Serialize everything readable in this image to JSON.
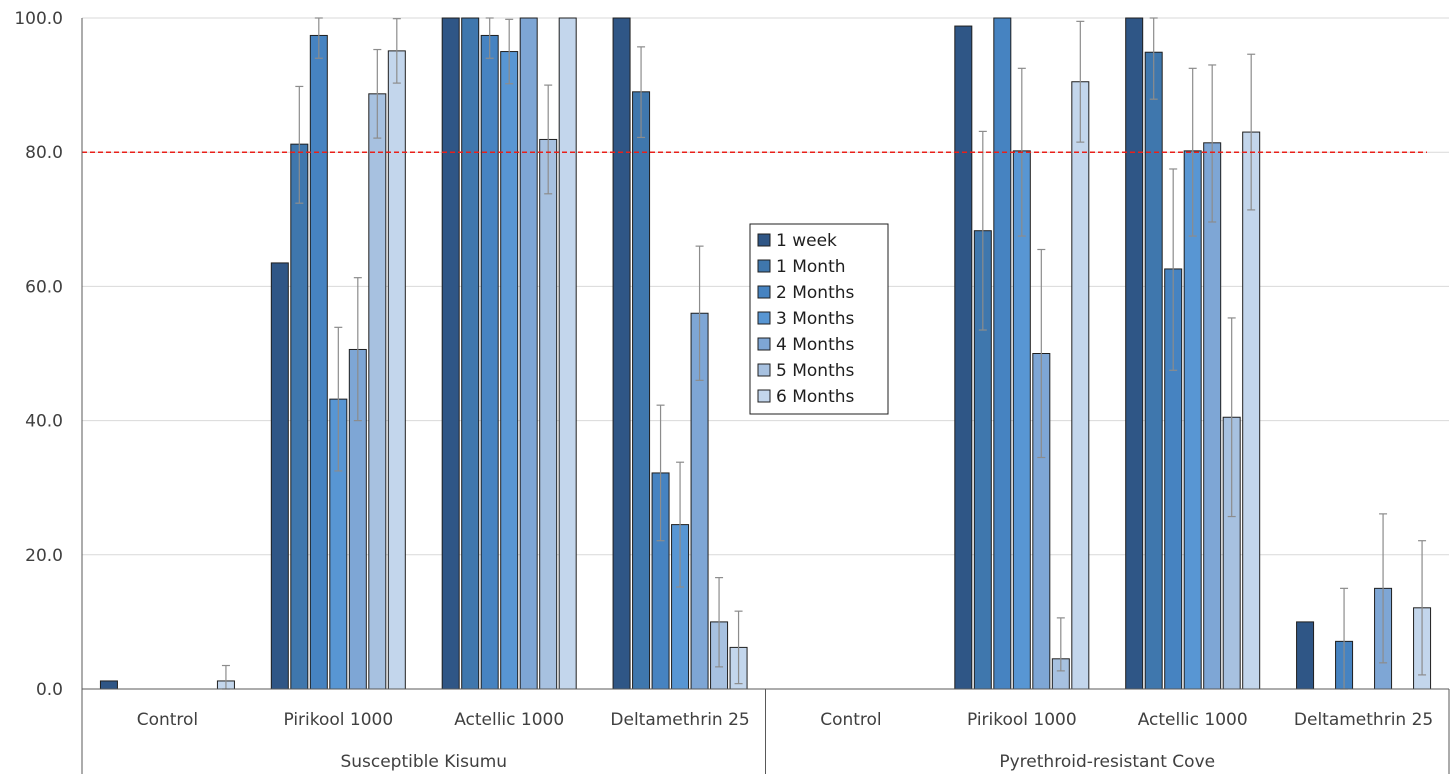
{
  "chart_data": {
    "type": "bar",
    "title": "",
    "xlabel": "",
    "ylabel": "",
    "ylim": [
      0,
      100
    ],
    "yticks": [
      "0.0",
      "20.0",
      "40.0",
      "60.0",
      "80.0",
      "100.0"
    ],
    "reference_line": 80,
    "groups": [
      "Susceptible Kisumu",
      "Pyrethroid-resistant Cove"
    ],
    "categories": [
      "Control",
      "Pirikool 1000",
      "Actellic 1000",
      "Deltamethrin 25",
      "Control",
      "Pirikool 1000",
      "Actellic 1000",
      "Deltamethrin 25"
    ],
    "legend_position": "center",
    "series": [
      {
        "name": "1 week",
        "color": "#2f5686",
        "values": [
          1.2,
          63.5,
          100,
          100,
          0,
          98.8,
          100,
          10.0
        ],
        "errors": [
          null,
          null,
          null,
          null,
          null,
          null,
          null,
          null
        ]
      },
      {
        "name": "1 Month",
        "color": "#3f77ad",
        "values": [
          0,
          81.2,
          100,
          89.0,
          0,
          68.3,
          94.9,
          0
        ],
        "errors": [
          null,
          [
            72.4,
            89.8
          ],
          null,
          [
            82.2,
            95.7
          ],
          null,
          [
            53.5,
            83.1
          ],
          [
            87.9,
            100
          ],
          null
        ]
      },
      {
        "name": "2 Months",
        "color": "#4683c1",
        "values": [
          0,
          97.4,
          97.4,
          32.2,
          0,
          100,
          62.6,
          7.1
        ],
        "errors": [
          null,
          [
            94.0,
            100
          ],
          [
            94.0,
            100
          ],
          [
            22.1,
            42.3
          ],
          null,
          null,
          [
            47.5,
            77.5
          ],
          [
            0,
            15.0
          ]
        ]
      },
      {
        "name": "3 Months",
        "color": "#5896d3",
        "values": [
          0,
          43.2,
          95.0,
          24.5,
          0,
          80.2,
          80.2,
          0
        ],
        "errors": [
          null,
          [
            32.5,
            53.9
          ],
          [
            90.2,
            99.8
          ],
          [
            15.2,
            33.8
          ],
          null,
          [
            67.5,
            92.5
          ],
          [
            67.5,
            92.5
          ],
          null
        ]
      },
      {
        "name": "4 Months",
        "color": "#7ea6d5",
        "values": [
          0,
          50.6,
          100,
          56.0,
          0,
          50.0,
          81.4,
          15.0
        ],
        "errors": [
          null,
          [
            40.0,
            61.3
          ],
          null,
          [
            46.0,
            66.0
          ],
          null,
          [
            34.5,
            65.5
          ],
          [
            69.6,
            93.0
          ],
          [
            3.9,
            26.1
          ]
        ]
      },
      {
        "name": "5 Months",
        "color": "#a7c1e0",
        "values": [
          0,
          88.7,
          81.9,
          10.0,
          0,
          4.5,
          40.5,
          0
        ],
        "errors": [
          null,
          [
            82.1,
            95.3
          ],
          [
            73.8,
            90.0
          ],
          [
            3.3,
            16.6
          ],
          null,
          [
            2.7,
            10.6
          ],
          [
            25.7,
            55.3
          ],
          null
        ]
      },
      {
        "name": "6 Months",
        "color": "#c3d6ec",
        "values": [
          1.2,
          95.1,
          100,
          6.2,
          0,
          90.5,
          83.0,
          12.1
        ],
        "errors": [
          [
            0,
            3.5
          ],
          [
            90.3,
            99.9
          ],
          null,
          [
            0.8,
            11.6
          ],
          null,
          [
            81.5,
            99.5
          ],
          [
            71.4,
            94.6
          ],
          [
            2.1,
            22.1
          ]
        ]
      }
    ]
  }
}
